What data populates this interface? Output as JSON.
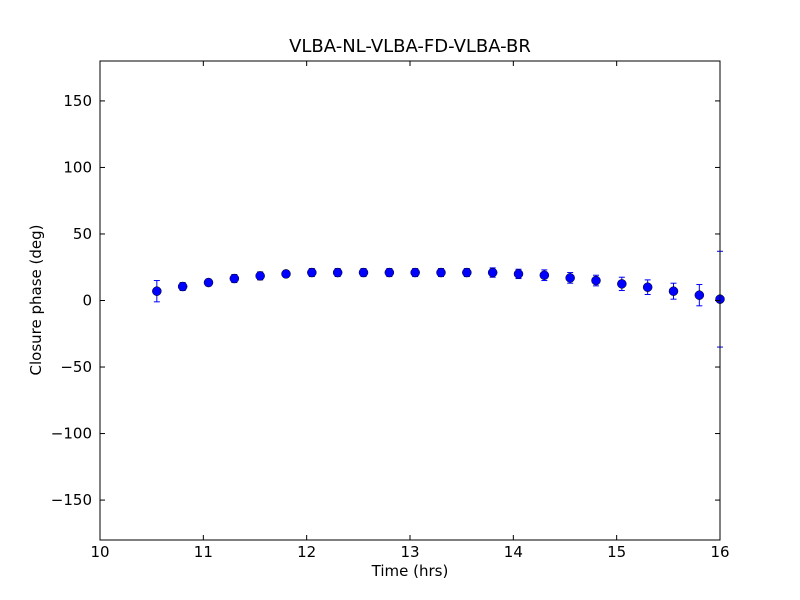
{
  "chart_data": {
    "type": "scatter",
    "title": "VLBA-NL-VLBA-FD-VLBA-BR",
    "xlabel": "Time (hrs)",
    "ylabel": "Closure phase (deg)",
    "xlim": [
      10,
      16
    ],
    "ylim": [
      -180,
      180
    ],
    "xticks": [
      10,
      11,
      12,
      13,
      14,
      15,
      16
    ],
    "yticks": [
      150,
      100,
      50,
      0,
      -50,
      -100,
      -150
    ],
    "ytick_labels": [
      "150",
      "100",
      "50",
      "0",
      "−50",
      "−100",
      "−150"
    ],
    "grid": false,
    "marker_color": "#0000ff",
    "series": [
      {
        "points": [
          {
            "x": 10.55,
            "y": 7,
            "err": 8
          },
          {
            "x": 10.8,
            "y": 10.5,
            "err": 3
          },
          {
            "x": 11.05,
            "y": 13.5,
            "err": 2.5
          },
          {
            "x": 11.3,
            "y": 16.5,
            "err": 3
          },
          {
            "x": 11.55,
            "y": 18.5,
            "err": 3
          },
          {
            "x": 11.8,
            "y": 20,
            "err": 2.5
          },
          {
            "x": 12.05,
            "y": 21,
            "err": 3
          },
          {
            "x": 12.3,
            "y": 21,
            "err": 3
          },
          {
            "x": 12.55,
            "y": 21,
            "err": 3
          },
          {
            "x": 12.8,
            "y": 21,
            "err": 3
          },
          {
            "x": 13.05,
            "y": 21,
            "err": 3
          },
          {
            "x": 13.3,
            "y": 21,
            "err": 3
          },
          {
            "x": 13.55,
            "y": 21,
            "err": 3
          },
          {
            "x": 13.8,
            "y": 21,
            "err": 3.5
          },
          {
            "x": 14.05,
            "y": 20,
            "err": 3.5
          },
          {
            "x": 14.3,
            "y": 19,
            "err": 4
          },
          {
            "x": 14.55,
            "y": 17,
            "err": 4
          },
          {
            "x": 14.8,
            "y": 15,
            "err": 4
          },
          {
            "x": 15.05,
            "y": 12.5,
            "err": 5
          },
          {
            "x": 15.3,
            "y": 10,
            "err": 5.5
          },
          {
            "x": 15.55,
            "y": 7,
            "err": 6
          },
          {
            "x": 15.8,
            "y": 4,
            "err": 8
          },
          {
            "x": 16.0,
            "y": 1,
            "err": 36
          }
        ]
      }
    ]
  }
}
